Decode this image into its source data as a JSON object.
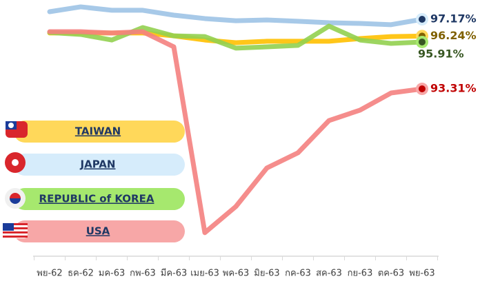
{
  "chart_data": {
    "type": "line",
    "categories": [
      "พย-62",
      "ธค-62",
      "มค-63",
      "กพ-63",
      "มีค-63",
      "เมย-63",
      "พค-63",
      "มิย-63",
      "กค-63",
      "สค-63",
      "กย-63",
      "ตค-63",
      "พย-63"
    ],
    "ylim": [
      84.1,
      98.24
    ],
    "series": [
      {
        "name": "TAIWAN",
        "color": "#ffc000",
        "label_color": "#7f6000",
        "legend_color": "#ffd85a",
        "values": [
          96.41,
          96.41,
          96.41,
          96.41,
          96.25,
          96.02,
          95.87,
          95.95,
          95.95,
          95.95,
          96.1,
          96.21,
          96.24
        ],
        "end_label": "96.24%"
      },
      {
        "name": "JAPAN",
        "color": "#9dc3e6",
        "label_color": "#1f3864",
        "legend_color": "#d6ecfb",
        "values": [
          97.59,
          97.86,
          97.67,
          97.67,
          97.4,
          97.21,
          97.09,
          97.13,
          97.06,
          96.98,
          96.94,
          96.87,
          97.17
        ],
        "end_label": "97.17%"
      },
      {
        "name": "REPUBLIC of KOREA",
        "color": "#92d050",
        "label_color": "#385723",
        "legend_color": "#a6e86e",
        "values": [
          96.44,
          96.33,
          96.02,
          96.71,
          96.25,
          96.21,
          95.57,
          95.64,
          95.72,
          96.79,
          96.02,
          95.83,
          95.91
        ],
        "end_label": "95.91%"
      },
      {
        "name": "USA",
        "color": "#f4817f",
        "label_color": "#c00000",
        "legend_color": "#f7a7a7",
        "values": [
          96.48,
          96.48,
          96.41,
          96.48,
          95.64,
          85.33,
          86.78,
          88.92,
          89.76,
          91.55,
          92.13,
          93.08,
          93.31
        ],
        "end_label": "93.31%"
      }
    ]
  }
}
